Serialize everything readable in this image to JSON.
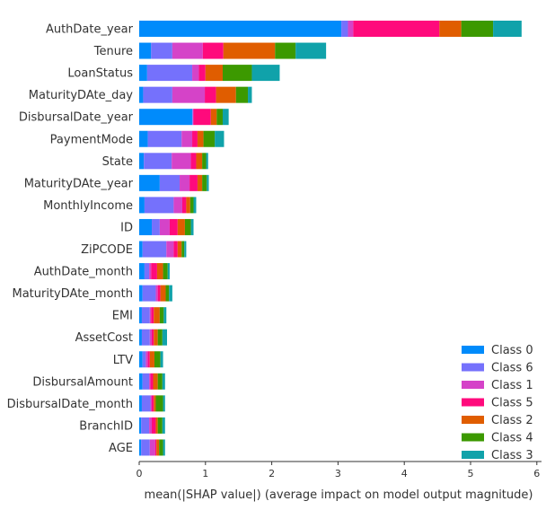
{
  "chart_data": {
    "type": "bar",
    "orientation": "horizontal",
    "stacked": true,
    "xlabel": "mean(|SHAP value|) (average impact on model output magnitude)",
    "ylabel": "",
    "xlim": [
      0,
      6.1
    ],
    "xticks": [
      "0",
      "1",
      "2",
      "3",
      "4",
      "5",
      "6"
    ],
    "grid": false,
    "legend_position": "bottom-right",
    "categories": [
      "AuthDate_year",
      "Tenure",
      "LoanStatus",
      "MaturityDAte_day",
      "DisbursalDate_year",
      "PaymentMode",
      "State",
      "MaturityDAte_year",
      "MonthlyIncome",
      "ID",
      "ZiPCODE",
      "AuthDate_month",
      "MaturityDAte_month",
      "EMI",
      "AssetCost",
      "LTV",
      "DisbursalAmount",
      "DisbursalDate_month",
      "BranchID",
      "AGE"
    ],
    "series": [
      {
        "name": "Class 0",
        "color": "#008bfb",
        "values": [
          3.05,
          0.18,
          0.12,
          0.06,
          0.8,
          0.13,
          0.07,
          0.31,
          0.08,
          0.19,
          0.05,
          0.08,
          0.05,
          0.04,
          0.04,
          0.05,
          0.05,
          0.04,
          0.03,
          0.03
        ]
      },
      {
        "name": "Class 6",
        "color": "#7571fc",
        "values": [
          0.1,
          0.32,
          0.68,
          0.44,
          0.01,
          0.51,
          0.42,
          0.3,
          0.44,
          0.12,
          0.36,
          0.07,
          0.2,
          0.12,
          0.12,
          0.05,
          0.1,
          0.13,
          0.12,
          0.13
        ]
      },
      {
        "name": "Class 1",
        "color": "#d543c8",
        "values": [
          0.08,
          0.46,
          0.1,
          0.49,
          0.01,
          0.16,
          0.29,
          0.15,
          0.13,
          0.15,
          0.11,
          0.03,
          0.03,
          0.02,
          0.03,
          0.03,
          0.02,
          0.02,
          0.04,
          0.08
        ]
      },
      {
        "name": "Class 5",
        "color": "#ff0a7c",
        "values": [
          1.3,
          0.31,
          0.1,
          0.17,
          0.26,
          0.08,
          0.08,
          0.12,
          0.06,
          0.12,
          0.06,
          0.09,
          0.04,
          0.04,
          0.03,
          0.03,
          0.04,
          0.03,
          0.06,
          0.02
        ]
      },
      {
        "name": "Class 2",
        "color": "#e05d00",
        "values": [
          0.33,
          0.78,
          0.26,
          0.3,
          0.09,
          0.09,
          0.09,
          0.07,
          0.06,
          0.11,
          0.06,
          0.09,
          0.08,
          0.09,
          0.06,
          0.07,
          0.07,
          0.03,
          0.03,
          0.04
        ]
      },
      {
        "name": "Class 4",
        "color": "#3c9900",
        "values": [
          0.48,
          0.31,
          0.44,
          0.18,
          0.09,
          0.17,
          0.06,
          0.07,
          0.05,
          0.09,
          0.04,
          0.07,
          0.05,
          0.06,
          0.07,
          0.09,
          0.07,
          0.11,
          0.07,
          0.06
        ]
      },
      {
        "name": "Class 3",
        "color": "#10a2aa",
        "values": [
          0.43,
          0.46,
          0.42,
          0.06,
          0.09,
          0.14,
          0.03,
          0.03,
          0.04,
          0.04,
          0.03,
          0.03,
          0.05,
          0.04,
          0.07,
          0.04,
          0.04,
          0.03,
          0.04,
          0.03
        ]
      }
    ]
  }
}
